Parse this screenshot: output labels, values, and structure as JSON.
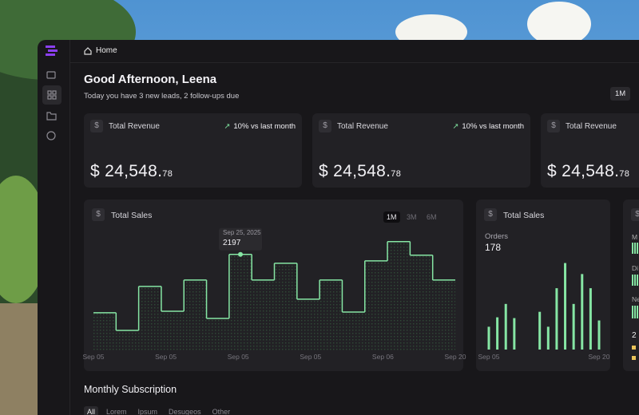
{
  "nav": {
    "breadcrumb": "Home"
  },
  "header": {
    "title": "Good Afternoon, Leena",
    "subtitle": "Today you have 3 new leads, 2 follow-ups due",
    "range": "1M"
  },
  "kpis": [
    {
      "label": "Total Revenue",
      "change": "10% vs last month",
      "value": "$ 24,548.",
      "cents": "78"
    },
    {
      "label": "Total Revenue",
      "change": "10% vs last month",
      "value": "$ 24,548.",
      "cents": "78"
    },
    {
      "label": "Total Revenue",
      "value": "$ 24,548.",
      "cents": "78"
    }
  ],
  "chart_data": [
    {
      "type": "line",
      "step": true,
      "title": "Total Sales",
      "tabs": [
        "1M",
        "3M",
        "6M"
      ],
      "tooltip_date": "Sep 25, 2025",
      "tooltip_index": 6,
      "values": [
        871,
        472,
        1470,
        907,
        1615,
        744,
        2197,
        1615,
        1996,
        1180,
        1615,
        889,
        2051,
        2487,
        2179,
        1615
      ],
      "x_labels": [
        "Sep 05",
        "Sep 05",
        "Sep 05",
        "Sep 05",
        "Sep 06",
        "Sep 20"
      ],
      "ylim": [
        0,
        2700
      ],
      "color": "#86e6a4"
    },
    {
      "type": "bar",
      "title": "Total Sales",
      "metric": "Orders",
      "total": 178,
      "values": [
        29,
        41,
        58,
        40,
        0,
        0,
        48,
        29,
        78,
        110,
        58,
        96,
        78,
        37
      ],
      "x_labels": [
        "Sep 05",
        "Sep 20"
      ],
      "ylim": [
        0,
        140
      ],
      "color": "#86e6a4"
    }
  ],
  "panel3": {
    "labels": [
      "M",
      "Di",
      "Ne"
    ],
    "count": "2"
  },
  "subscription": {
    "title": "Monthly Subscription",
    "tabs": [
      "All",
      "Lorem",
      "Ipsum",
      "Desugeos",
      "Other"
    ]
  }
}
